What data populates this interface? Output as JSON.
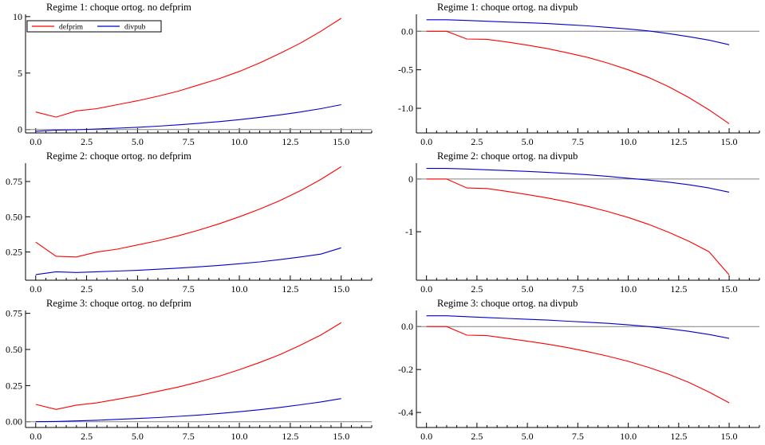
{
  "chart_data": [
    {
      "type": "line",
      "title": "Regime 1: choque ortog. no defprim",
      "x": [
        0,
        1,
        2,
        3,
        4,
        5,
        6,
        7,
        8,
        9,
        10,
        11,
        12,
        13,
        14,
        15
      ],
      "xlim": [
        -0.5,
        16.5
      ],
      "xticks": [
        0,
        2.5,
        5,
        7.5,
        10,
        12.5,
        15
      ],
      "xtick_labels": [
        "0.0",
        "2.5",
        "5.0",
        "7.5",
        "10.0",
        "12.5",
        "15.0"
      ],
      "ylim": [
        -0.3,
        10.2
      ],
      "yticks": [
        0,
        5,
        10
      ],
      "ytick_labels": [
        "0",
        "5",
        "10"
      ],
      "zero_line": true,
      "legend": {
        "position": "top-left",
        "entries": [
          "defprim",
          "divpub"
        ]
      },
      "series": [
        {
          "name": "defprim",
          "color": "#ff0000",
          "values": [
            1.55,
            1.1,
            1.65,
            1.85,
            2.2,
            2.55,
            2.95,
            3.4,
            3.95,
            4.5,
            5.15,
            5.9,
            6.75,
            7.65,
            8.7,
            9.85
          ]
        },
        {
          "name": "divpub",
          "color": "#0000cc",
          "values": [
            -0.15,
            -0.05,
            -0.02,
            0.05,
            0.12,
            0.2,
            0.3,
            0.42,
            0.55,
            0.7,
            0.88,
            1.08,
            1.3,
            1.55,
            1.85,
            2.2
          ]
        }
      ]
    },
    {
      "type": "line",
      "title": "Regime 1: choque ortog. na divpub",
      "x": [
        0,
        1,
        2,
        3,
        4,
        5,
        6,
        7,
        8,
        9,
        10,
        11,
        12,
        13,
        14,
        15
      ],
      "xlim": [
        -0.5,
        16.5
      ],
      "xticks": [
        0,
        2.5,
        5,
        7.5,
        10,
        12.5,
        15
      ],
      "xtick_labels": [
        "0.0",
        "2.5",
        "5.0",
        "7.5",
        "10.0",
        "12.5",
        "15.0"
      ],
      "ylim": [
        -1.32,
        0.22
      ],
      "yticks": [
        0,
        -0.5,
        -1.0
      ],
      "ytick_labels": [
        "0.0",
        "-0.5",
        "-1.0"
      ],
      "zero_line": true,
      "series": [
        {
          "color": "#ff0000",
          "values": [
            0,
            0,
            -0.1,
            -0.105,
            -0.14,
            -0.18,
            -0.225,
            -0.28,
            -0.34,
            -0.415,
            -0.5,
            -0.6,
            -0.72,
            -0.86,
            -1.02,
            -1.2
          ]
        },
        {
          "color": "#0000cc",
          "values": [
            0.15,
            0.15,
            0.14,
            0.13,
            0.12,
            0.11,
            0.1,
            0.085,
            0.07,
            0.05,
            0.03,
            0.005,
            -0.03,
            -0.07,
            -0.115,
            -0.175
          ]
        }
      ]
    },
    {
      "type": "line",
      "title": "Regime 2: choque ortog. no defprim",
      "x": [
        0,
        1,
        2,
        3,
        4,
        5,
        6,
        7,
        8,
        9,
        10,
        11,
        12,
        13,
        14,
        15
      ],
      "xlim": [
        -0.5,
        16.5
      ],
      "xticks": [
        0,
        2.5,
        5,
        7.5,
        10,
        12.5,
        15
      ],
      "xtick_labels": [
        "0.0",
        "2.5",
        "5.0",
        "7.5",
        "10.0",
        "12.5",
        "15.0"
      ],
      "ylim": [
        0.05,
        0.88
      ],
      "yticks": [
        0.25,
        0.5,
        0.75
      ],
      "ytick_labels": [
        "0.25",
        "0.50",
        "0.75"
      ],
      "zero_line": false,
      "series": [
        {
          "color": "#ff0000",
          "values": [
            0.32,
            0.22,
            0.215,
            0.25,
            0.27,
            0.3,
            0.33,
            0.365,
            0.405,
            0.45,
            0.5,
            0.555,
            0.615,
            0.685,
            0.765,
            0.855
          ]
        },
        {
          "color": "#0000cc",
          "values": [
            0.09,
            0.11,
            0.105,
            0.11,
            0.115,
            0.12,
            0.128,
            0.136,
            0.145,
            0.155,
            0.167,
            0.18,
            0.196,
            0.215,
            0.235,
            0.28
          ]
        }
      ]
    },
    {
      "type": "line",
      "title": "Regime 2: choque ortog. na divpub",
      "x": [
        0,
        1,
        2,
        3,
        4,
        5,
        6,
        7,
        8,
        9,
        10,
        11,
        12,
        13,
        14,
        15
      ],
      "xlim": [
        -0.5,
        16.5
      ],
      "xticks": [
        0,
        2.5,
        5,
        7.5,
        10,
        12.5,
        15
      ],
      "xtick_labels": [
        "0.0",
        "2.5",
        "5.0",
        "7.5",
        "10.0",
        "12.5",
        "15.0"
      ],
      "ylim": [
        -1.92,
        0.3
      ],
      "yticks": [
        0,
        -1
      ],
      "ytick_labels": [
        "0",
        "-1"
      ],
      "zero_line": true,
      "series": [
        {
          "color": "#ff0000",
          "values": [
            0,
            0,
            -0.17,
            -0.18,
            -0.235,
            -0.295,
            -0.36,
            -0.435,
            -0.52,
            -0.62,
            -0.73,
            -0.86,
            -1.01,
            -1.18,
            -1.38,
            -1.82
          ]
        },
        {
          "color": "#0000cc",
          "values": [
            0.2,
            0.2,
            0.19,
            0.175,
            0.16,
            0.145,
            0.125,
            0.105,
            0.08,
            0.05,
            0.015,
            -0.02,
            -0.06,
            -0.11,
            -0.17,
            -0.25
          ]
        }
      ]
    },
    {
      "type": "line",
      "title": "Regime 3: choque ortog. no defprim",
      "x": [
        0,
        1,
        2,
        3,
        4,
        5,
        6,
        7,
        8,
        9,
        10,
        11,
        12,
        13,
        14,
        15
      ],
      "xlim": [
        -0.5,
        16.5
      ],
      "xticks": [
        0,
        2.5,
        5,
        7.5,
        10,
        12.5,
        15
      ],
      "xtick_labels": [
        "0.0",
        "2.5",
        "5.0",
        "7.5",
        "10.0",
        "12.5",
        "15.0"
      ],
      "ylim": [
        -0.04,
        0.77
      ],
      "yticks": [
        0,
        0.25,
        0.5,
        0.75
      ],
      "ytick_labels": [
        "0.00",
        "0.25",
        "0.50",
        "0.75"
      ],
      "zero_line": true,
      "series": [
        {
          "color": "#ff0000",
          "values": [
            0.12,
            0.085,
            0.115,
            0.13,
            0.155,
            0.18,
            0.21,
            0.24,
            0.275,
            0.315,
            0.36,
            0.41,
            0.465,
            0.53,
            0.6,
            0.685
          ]
        },
        {
          "color": "#0000cc",
          "values": [
            0,
            0.002,
            0.006,
            0.01,
            0.016,
            0.022,
            0.029,
            0.037,
            0.046,
            0.057,
            0.069,
            0.083,
            0.099,
            0.117,
            0.137,
            0.16
          ]
        }
      ]
    },
    {
      "type": "line",
      "title": "Regime 3: choque ortog. na divpub",
      "x": [
        0,
        1,
        2,
        3,
        4,
        5,
        6,
        7,
        8,
        9,
        10,
        11,
        12,
        13,
        14,
        15
      ],
      "xlim": [
        -0.5,
        16.5
      ],
      "xticks": [
        0,
        2.5,
        5,
        7.5,
        10,
        12.5,
        15
      ],
      "xtick_labels": [
        "0.0",
        "2.5",
        "5.0",
        "7.5",
        "10.0",
        "12.5",
        "15.0"
      ],
      "ylim": [
        -0.47,
        0.075
      ],
      "yticks": [
        0,
        -0.2,
        -0.4
      ],
      "ytick_labels": [
        "0.0",
        "-0.2",
        "-0.4"
      ],
      "zero_line": true,
      "series": [
        {
          "color": "#ff0000",
          "values": [
            0,
            0,
            -0.04,
            -0.042,
            -0.055,
            -0.068,
            -0.082,
            -0.098,
            -0.117,
            -0.138,
            -0.162,
            -0.19,
            -0.222,
            -0.26,
            -0.305,
            -0.355
          ]
        },
        {
          "color": "#0000cc",
          "values": [
            0.05,
            0.05,
            0.046,
            0.042,
            0.038,
            0.034,
            0.03,
            0.025,
            0.02,
            0.015,
            0.008,
            0,
            -0.01,
            -0.022,
            -0.037,
            -0.055
          ]
        }
      ]
    }
  ]
}
